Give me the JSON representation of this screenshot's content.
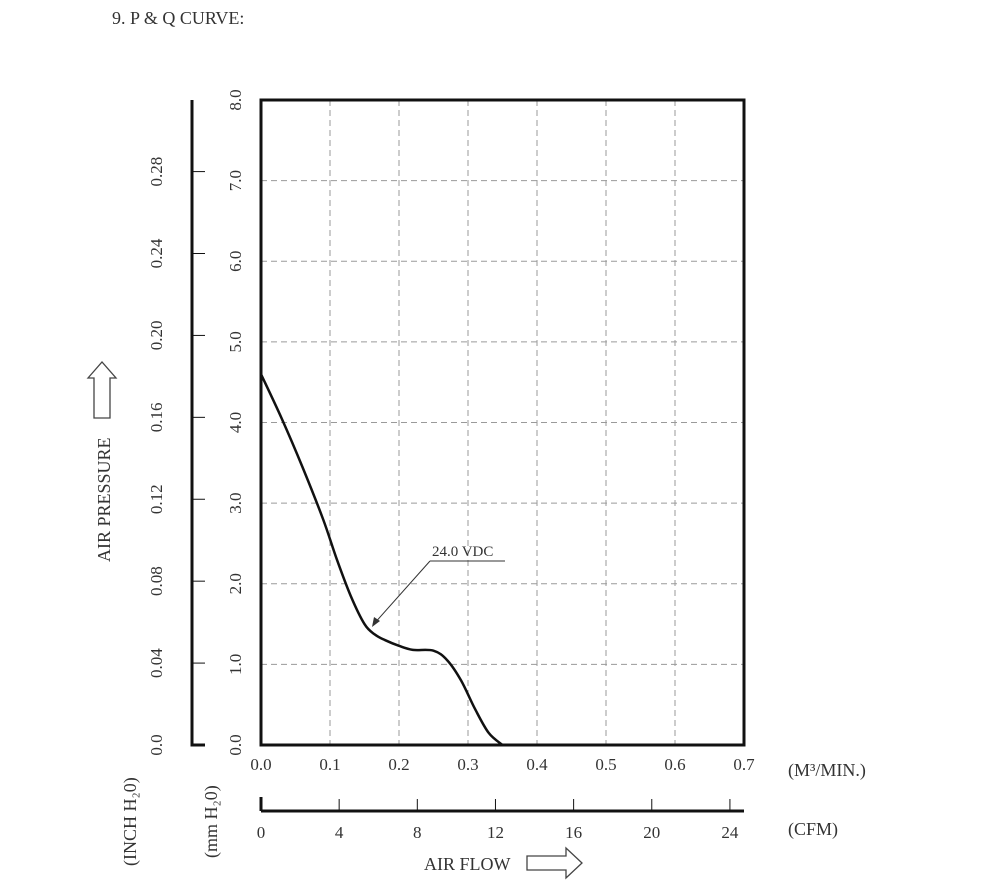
{
  "section_title": "9. P & Q CURVE:",
  "curve_label": "24.0 VDC",
  "y_axis": {
    "label": "AIR PRESSURE",
    "mm_unit": "(mm H₂0)",
    "inch_unit": "(INCH H₂0)",
    "mm_ticks": [
      "0.0",
      "1.0",
      "2.0",
      "3.0",
      "4.0",
      "5.0",
      "6.0",
      "7.0",
      "8.0"
    ],
    "inch_ticks": [
      "0.0",
      "0.04",
      "0.08",
      "0.12",
      "0.16",
      "0.20",
      "0.24",
      "0.28"
    ]
  },
  "x_axis": {
    "label": "AIR FLOW",
    "m3_unit": "(M³/MIN.)",
    "cfm_unit": "(CFM)",
    "m3_ticks": [
      "0.0",
      "0.1",
      "0.2",
      "0.3",
      "0.4",
      "0.5",
      "0.6",
      "0.7"
    ],
    "cfm_ticks": [
      "0",
      "4",
      "8",
      "12",
      "16",
      "20",
      "24"
    ]
  },
  "chart_data": {
    "type": "line",
    "title": "9. P & Q CURVE:",
    "xlabel": "AIR FLOW (M³/MIN.)",
    "ylabel": "AIR PRESSURE (mm H₂0)",
    "xlim": [
      0,
      0.7
    ],
    "ylim": [
      0,
      8.0
    ],
    "grid": true,
    "series": [
      {
        "name": "24.0 VDC",
        "x": [
          0.0,
          0.03,
          0.06,
          0.09,
          0.11,
          0.13,
          0.15,
          0.165,
          0.18,
          0.2,
          0.22,
          0.25,
          0.27,
          0.29,
          0.31,
          0.33,
          0.35
        ],
        "y": [
          4.6,
          4.05,
          3.45,
          2.8,
          2.3,
          1.85,
          1.5,
          1.37,
          1.3,
          1.23,
          1.18,
          1.17,
          1.05,
          0.8,
          0.45,
          0.15,
          0.0
        ]
      }
    ]
  }
}
